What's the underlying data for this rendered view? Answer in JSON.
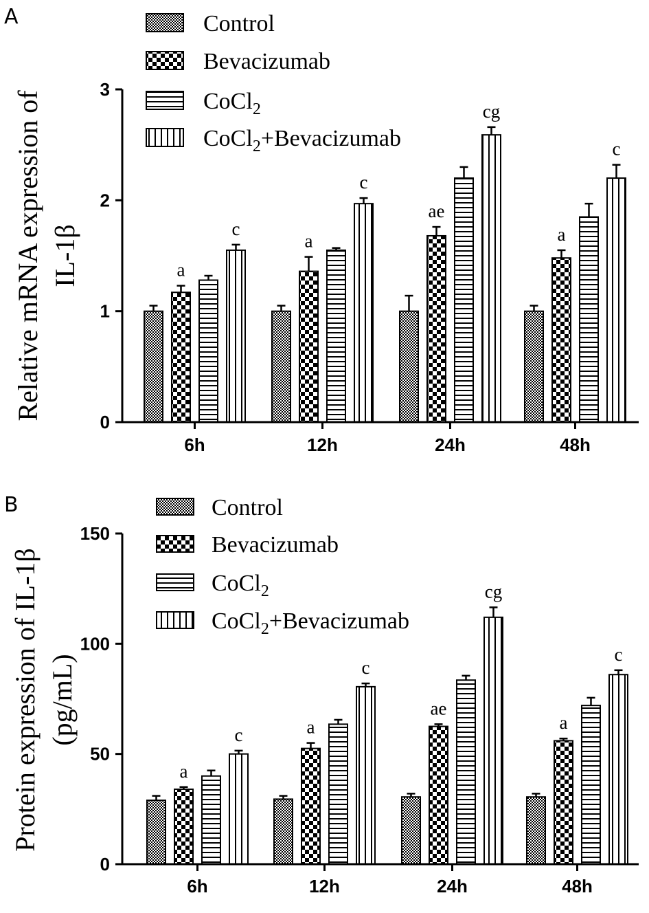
{
  "figure": {
    "description_panels": [
      "A",
      "B"
    ]
  },
  "patterns": {
    "Control": "fine-checker",
    "Bevacizumab": "coarse-checker",
    "CoCl2": "horizontal-stripes",
    "CoCl2+Bevacizumab": "vertical-stripes"
  },
  "chart_data": [
    {
      "panel": "A",
      "type": "bar",
      "ylabel_lines": [
        "Relative mRNA expression of",
        "IL-1β"
      ],
      "categories": [
        "6h",
        "12h",
        "24h",
        "48h"
      ],
      "ylim": [
        0,
        3
      ],
      "yticks": [
        0,
        1,
        2,
        3
      ],
      "legend": {
        "placement": "top",
        "entries": [
          {
            "series": "Control",
            "parts": [
              {
                "t": "Control"
              }
            ]
          },
          {
            "series": "Bevacizumab",
            "parts": [
              {
                "t": "Bevacizumab"
              }
            ]
          },
          {
            "series": "CoCl2",
            "parts": [
              {
                "t": "CoCl"
              },
              {
                "t": "2",
                "sub": true
              }
            ]
          },
          {
            "series": "CoCl2+Bevacizumab",
            "parts": [
              {
                "t": "CoCl"
              },
              {
                "t": "2",
                "sub": true
              },
              {
                "t": "+Bevacizumab"
              }
            ]
          }
        ]
      },
      "series": [
        {
          "name": "Control",
          "values": [
            1.0,
            1.0,
            1.0,
            1.0
          ],
          "errors": [
            0.05,
            0.05,
            0.14,
            0.05
          ],
          "annotations": [
            "",
            "",
            "",
            ""
          ]
        },
        {
          "name": "Bevacizumab",
          "values": [
            1.17,
            1.36,
            1.68,
            1.48
          ],
          "errors": [
            0.06,
            0.13,
            0.08,
            0.07
          ],
          "annotations": [
            "a",
            "a",
            "ae",
            "a"
          ]
        },
        {
          "name": "CoCl2",
          "values": [
            1.28,
            1.55,
            2.2,
            1.85
          ],
          "errors": [
            0.04,
            0.02,
            0.1,
            0.12
          ],
          "annotations": [
            "",
            "",
            "",
            ""
          ]
        },
        {
          "name": "CoCl2+Bevacizumab",
          "values": [
            1.55,
            1.97,
            2.59,
            2.2
          ],
          "errors": [
            0.05,
            0.05,
            0.07,
            0.12
          ],
          "annotations": [
            "c",
            "c",
            "cg",
            "c"
          ]
        }
      ]
    },
    {
      "panel": "B",
      "type": "bar",
      "ylabel_lines": [
        "Protein expression of IL-1β",
        "(pg/mL)"
      ],
      "categories": [
        "6h",
        "12h",
        "24h",
        "48h"
      ],
      "ylim": [
        0,
        150
      ],
      "yticks": [
        0,
        50,
        100,
        150
      ],
      "legend": {
        "placement": "top",
        "entries": [
          {
            "series": "Control",
            "parts": [
              {
                "t": "Control"
              }
            ]
          },
          {
            "series": "Bevacizumab",
            "parts": [
              {
                "t": "Bevacizumab"
              }
            ]
          },
          {
            "series": "CoCl2",
            "parts": [
              {
                "t": "CoCl"
              },
              {
                "t": "2",
                "sub": true
              }
            ]
          },
          {
            "series": "CoCl2+Bevacizumab",
            "parts": [
              {
                "t": "CoCl"
              },
              {
                "t": "2",
                "sub": true
              },
              {
                "t": "+Bevacizumab"
              }
            ]
          }
        ]
      },
      "series": [
        {
          "name": "Control",
          "values": [
            29,
            29.5,
            30.5,
            30.5
          ],
          "errors": [
            2,
            1.5,
            1.5,
            1.5
          ],
          "annotations": [
            "",
            "",
            "",
            ""
          ]
        },
        {
          "name": "Bevacizumab",
          "values": [
            34,
            52.5,
            62.5,
            56
          ],
          "errors": [
            1,
            2.5,
            1,
            1
          ],
          "annotations": [
            "a",
            "a",
            "ae",
            "a"
          ]
        },
        {
          "name": "CoCl2",
          "values": [
            40,
            63.5,
            83.5,
            72
          ],
          "errors": [
            2.5,
            2,
            2,
            3.5
          ],
          "annotations": [
            "",
            "",
            "",
            ""
          ]
        },
        {
          "name": "CoCl2+Bevacizumab",
          "values": [
            50,
            80.5,
            112,
            86
          ],
          "errors": [
            1.5,
            1.5,
            4.5,
            2
          ],
          "annotations": [
            "c",
            "c",
            "cg",
            "c"
          ]
        }
      ]
    }
  ]
}
